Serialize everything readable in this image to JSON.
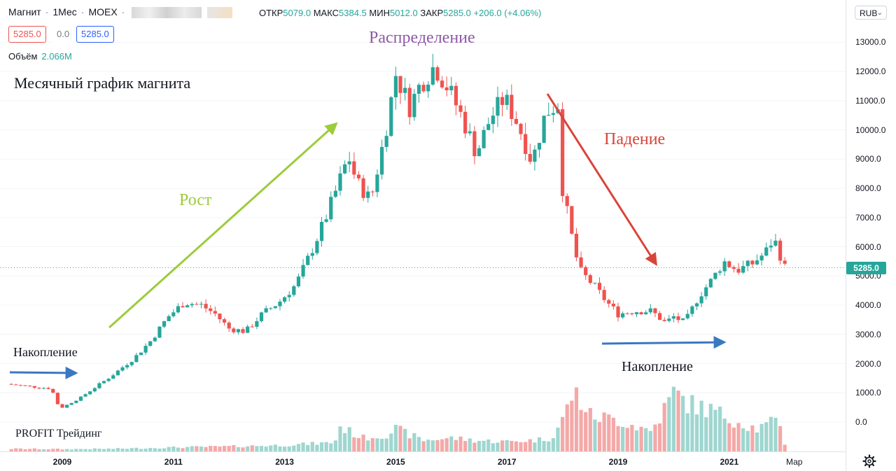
{
  "header": {
    "symbol": "Магнит",
    "interval": "1Мес",
    "exchange": "MOEX",
    "ohlc": {
      "open_label": "ОТКР",
      "open": "5079.0",
      "high_label": "МАКС",
      "high": "5384.5",
      "low_label": "МИН",
      "low": "5012.0",
      "close_label": "ЗАКР",
      "close": "5285.0",
      "change": "+206.0 (+4.06%)"
    },
    "bid": "5285.0",
    "spread": "0.0",
    "ask": "5285.0",
    "volume_label": "Объём",
    "volume_value": "2.066M"
  },
  "currency": "RUB",
  "current_price": "5285.0",
  "annotations": {
    "title": "Месячный график магнита",
    "distribution": "Распределение",
    "growth": "Рост",
    "fall": "Падение",
    "accumulation_1": "Накопление",
    "accumulation_2": "Накопление",
    "watermark": "PROFIT Трейдинг"
  },
  "colors": {
    "up": "#26a69a",
    "down": "#ef5350",
    "growth_arrow": "#9ccc3c",
    "fall_arrow": "#d9443a",
    "flat_arrow": "#3a78c2",
    "distribution_text": "#8e5aa8"
  },
  "chart_data": {
    "type": "candlestick",
    "timeframe": "1M",
    "y_axis_ticks": [
      0,
      1000,
      2000,
      3000,
      4000,
      5000,
      6000,
      7000,
      8000,
      9000,
      10000,
      11000,
      12000,
      13000
    ],
    "y_tick_labels": [
      "0.0",
      "1000.0",
      "2000.0",
      "3000.0",
      "4000.0",
      "5000.0",
      "6000.0",
      "7000.0",
      "8000.0",
      "9000.0",
      "10000.0",
      "11000.0",
      "12000.0",
      "13000.0"
    ],
    "x_tick_labels": [
      "2009",
      "2011",
      "2013",
      "2015",
      "2017",
      "2019",
      "2021",
      "Мар"
    ],
    "x_tick_positions": [
      2009,
      2011,
      2013,
      2015,
      2017,
      2019,
      2021,
      2022.17
    ],
    "close_path": [
      [
        2008.0,
        1300
      ],
      [
        2008.5,
        1200
      ],
      [
        2008.8,
        1150
      ],
      [
        2008.92,
        600
      ],
      [
        2009.0,
        500
      ],
      [
        2009.3,
        800
      ],
      [
        2009.6,
        1200
      ],
      [
        2009.9,
        1600
      ],
      [
        2010.3,
        2200
      ],
      [
        2010.6,
        2800
      ],
      [
        2010.9,
        3600
      ],
      [
        2011.2,
        4100
      ],
      [
        2011.5,
        4000
      ],
      [
        2011.75,
        3700
      ],
      [
        2012.0,
        3200
      ],
      [
        2012.3,
        3100
      ],
      [
        2012.6,
        3700
      ],
      [
        2012.9,
        4100
      ],
      [
        2013.2,
        4700
      ],
      [
        2013.4,
        5500
      ],
      [
        2013.7,
        6800
      ],
      [
        2013.9,
        7800
      ],
      [
        2014.15,
        9100
      ],
      [
        2014.3,
        8200
      ],
      [
        2014.55,
        7600
      ],
      [
        2014.8,
        9800
      ],
      [
        2015.0,
        11900
      ],
      [
        2015.25,
        10800
      ],
      [
        2015.45,
        11600
      ],
      [
        2015.7,
        12200
      ],
      [
        2015.95,
        11400
      ],
      [
        2016.2,
        10400
      ],
      [
        2016.45,
        9200
      ],
      [
        2016.7,
        10400
      ],
      [
        2016.95,
        11100
      ],
      [
        2017.2,
        10200
      ],
      [
        2017.45,
        8900
      ],
      [
        2017.7,
        10600
      ],
      [
        2017.92,
        10900
      ],
      [
        2018.0,
        8000
      ],
      [
        2018.15,
        6500
      ],
      [
        2018.3,
        5200
      ],
      [
        2018.55,
        4700
      ],
      [
        2018.8,
        4100
      ],
      [
        2019.0,
        3700
      ],
      [
        2019.3,
        3800
      ],
      [
        2019.6,
        3800
      ],
      [
        2019.85,
        3400
      ],
      [
        2020.0,
        3600
      ],
      [
        2020.2,
        3400
      ],
      [
        2020.45,
        4300
      ],
      [
        2020.7,
        4900
      ],
      [
        2020.9,
        5500
      ],
      [
        2021.15,
        5200
      ],
      [
        2021.4,
        5400
      ],
      [
        2021.65,
        5800
      ],
      [
        2021.8,
        6300
      ],
      [
        2021.9,
        5800
      ],
      [
        2022.0,
        5285
      ]
    ],
    "volume_path": [
      [
        2008.0,
        0.06
      ],
      [
        2009.0,
        0.05
      ],
      [
        2010.0,
        0.06
      ],
      [
        2011.0,
        0.09
      ],
      [
        2012.0,
        0.11
      ],
      [
        2013.0,
        0.14
      ],
      [
        2013.9,
        0.2
      ],
      [
        2014.0,
        0.55
      ],
      [
        2014.4,
        0.3
      ],
      [
        2014.8,
        0.36
      ],
      [
        2015.0,
        0.5
      ],
      [
        2015.5,
        0.25
      ],
      [
        2016.0,
        0.3
      ],
      [
        2016.5,
        0.24
      ],
      [
        2017.0,
        0.22
      ],
      [
        2017.5,
        0.25
      ],
      [
        2017.8,
        0.3
      ],
      [
        2018.0,
        0.7
      ],
      [
        2018.2,
        1.35
      ],
      [
        2018.5,
        0.8
      ],
      [
        2019.0,
        0.7
      ],
      [
        2019.6,
        0.45
      ],
      [
        2020.0,
        1.3
      ],
      [
        2020.3,
        1.05
      ],
      [
        2020.6,
        0.95
      ],
      [
        2021.0,
        0.75
      ],
      [
        2021.5,
        0.5
      ],
      [
        2021.9,
        0.7
      ],
      [
        2022.0,
        0.18
      ]
    ]
  }
}
